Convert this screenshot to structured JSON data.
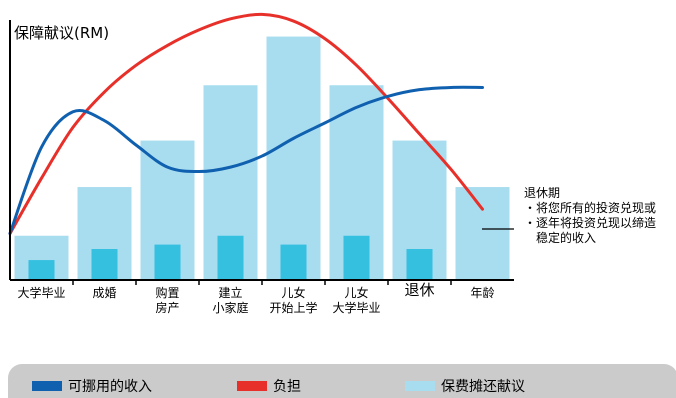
{
  "chart_data": {
    "type": "bar",
    "ylabel": "保障献议(RM)",
    "categories": [
      [
        "大学毕业"
      ],
      [
        "成婚"
      ],
      [
        "购置",
        "房产"
      ],
      [
        "建立",
        "小家庭"
      ],
      [
        "儿女",
        "开始上学"
      ],
      [
        "儿女",
        "大学毕业"
      ],
      [
        "退休"
      ],
      [
        "年龄"
      ]
    ],
    "series": [
      {
        "name": "保费摊还献议",
        "color": "#a8ddf0",
        "values": [
          2.0,
          4.2,
          6.3,
          8.8,
          11.0,
          8.8,
          6.3,
          4.2
        ]
      },
      {
        "color": "#35c0e0",
        "values": [
          0.9,
          1.4,
          1.6,
          2.0,
          1.6,
          2.0,
          1.4,
          0
        ]
      },
      {
        "name": "可挪用的收入",
        "color": "#1060b0",
        "type": "line",
        "x": [
          0,
          0.5,
          1,
          1.5,
          2,
          2.5,
          3,
          3.5,
          4,
          4.5,
          5,
          5.5,
          6,
          6.5,
          7,
          7.5
        ],
        "values": [
          2.1,
          6.0,
          7.6,
          7.2,
          6.1,
          5.1,
          4.9,
          5.1,
          5.6,
          6.4,
          7.1,
          7.8,
          8.3,
          8.6,
          8.7,
          8.7
        ]
      },
      {
        "name": "负担",
        "color": "#e8302a",
        "type": "line",
        "x": [
          0,
          0.5,
          1,
          1.5,
          2,
          2.5,
          3,
          3.5,
          4,
          4.5,
          5,
          5.5,
          6,
          6.5,
          7,
          7.5
        ],
        "values": [
          2.1,
          4.6,
          6.9,
          8.5,
          9.7,
          10.6,
          11.3,
          11.8,
          12.0,
          11.7,
          10.9,
          9.7,
          8.2,
          6.6,
          5.0,
          3.2
        ]
      }
    ],
    "ylim": [
      0,
      12.2
    ],
    "grid": false
  },
  "annotation": {
    "title": "退休期",
    "lines": [
      "・将您所有的投资兑现或",
      "・逐年将投资兑现以缔造",
      "稳定的收入"
    ]
  },
  "legend": {
    "items": [
      {
        "label": "可挪用的收入",
        "color": "#1060b0"
      },
      {
        "label": "负担",
        "color": "#e8302a"
      },
      {
        "label": "保费摊还献议",
        "color": "#a8ddf0"
      }
    ]
  }
}
